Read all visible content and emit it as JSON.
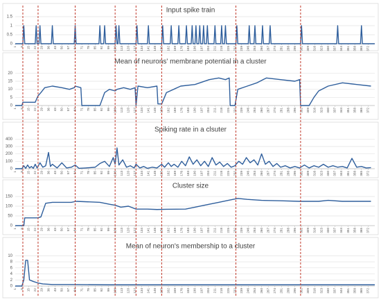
{
  "chart_data": [
    {
      "type": "line",
      "title": "Input spike train",
      "color": "#2e5e9c",
      "grid": true,
      "ylim": [
        0,
        1.5
      ],
      "yticks": [
        0,
        0.5,
        1,
        1.5
      ],
      "xlim": [
        1,
        379
      ],
      "xticks": [
        1,
        8,
        15,
        22,
        29,
        36,
        43,
        50,
        57,
        64,
        71,
        78,
        85,
        92,
        99,
        106,
        113,
        120,
        127,
        134,
        141,
        148,
        155,
        162,
        169,
        176,
        183,
        190,
        197,
        204,
        211,
        218,
        225,
        232,
        239,
        246,
        253,
        260,
        267,
        274,
        281,
        288,
        295,
        302,
        309,
        316,
        323,
        330,
        337,
        344,
        351,
        358,
        365,
        372
      ],
      "x": [
        1,
        9,
        10,
        11,
        22,
        23,
        24,
        26,
        27,
        28,
        39,
        40,
        41,
        63,
        64,
        65,
        89,
        90,
        91,
        94,
        95,
        96,
        106,
        107,
        108,
        109,
        110,
        111,
        128,
        129,
        130,
        140,
        141,
        142,
        155,
        156,
        157,
        164,
        165,
        166,
        172,
        173,
        174,
        180,
        181,
        182,
        186,
        187,
        188,
        190,
        191,
        192,
        194,
        195,
        196,
        198,
        199,
        200,
        202,
        203,
        204,
        210,
        211,
        212,
        217,
        218,
        219,
        221,
        222,
        223,
        233,
        234,
        235,
        246,
        247,
        248,
        252,
        253,
        254,
        260,
        261,
        262,
        268,
        269,
        270,
        301,
        302,
        303,
        339,
        340,
        341,
        364,
        365,
        366,
        379
      ],
      "values": [
        0,
        0,
        1,
        0,
        0,
        1,
        0,
        0,
        1,
        0,
        0,
        1,
        0,
        0,
        1,
        0,
        0,
        1,
        0,
        0,
        1,
        0,
        0,
        1,
        0,
        0,
        1,
        0,
        0,
        1,
        0,
        0,
        1,
        0,
        0,
        1,
        0,
        0,
        1,
        0,
        0,
        1,
        0,
        0,
        1,
        0,
        0,
        1,
        0,
        0,
        1,
        0,
        0,
        1,
        0,
        0,
        1,
        0,
        0,
        1,
        0,
        0,
        1,
        0,
        0,
        1,
        0,
        0,
        1,
        0,
        0,
        1,
        0,
        0,
        1,
        0,
        0,
        1,
        0,
        0,
        1,
        0,
        0,
        1,
        0,
        0,
        1,
        0,
        0,
        1,
        0,
        0,
        1,
        0,
        0
      ]
    },
    {
      "type": "line",
      "title": "Mean of neurons' membrane potential in a cluster",
      "color": "#2e5e9c",
      "grid": true,
      "ylim": [
        0,
        24
      ],
      "yticks": [
        0,
        5,
        10,
        15,
        20
      ],
      "xlim": [
        1,
        379
      ],
      "xticks": [
        1,
        8,
        15,
        22,
        29,
        36,
        43,
        50,
        57,
        64,
        71,
        78,
        85,
        92,
        99,
        106,
        113,
        120,
        127,
        134,
        141,
        148,
        155,
        162,
        169,
        176,
        183,
        190,
        197,
        204,
        211,
        218,
        225,
        232,
        239,
        246,
        253,
        260,
        267,
        274,
        281,
        288,
        295,
        302,
        309,
        316,
        323,
        330,
        337,
        344,
        351,
        358,
        365,
        372
      ],
      "x": [
        1,
        8,
        9,
        22,
        25,
        28,
        32,
        40,
        50,
        58,
        63,
        64,
        70,
        71,
        90,
        95,
        100,
        106,
        108,
        115,
        122,
        127,
        128,
        130,
        140,
        150,
        151,
        155,
        160,
        175,
        190,
        205,
        215,
        222,
        226,
        227,
        232,
        235,
        245,
        255,
        265,
        280,
        295,
        300,
        301,
        310,
        315,
        320,
        330,
        345,
        360,
        375
      ],
      "values": [
        0,
        0,
        2,
        2,
        6,
        8,
        11,
        12,
        11,
        10,
        11,
        12,
        11,
        0,
        0,
        8,
        10,
        9,
        10,
        11,
        10,
        11,
        0,
        12,
        11,
        12,
        1,
        1,
        8,
        12,
        13,
        16,
        17,
        16,
        17,
        0,
        0,
        10,
        12,
        14,
        17,
        16,
        15,
        16,
        0,
        0,
        5,
        9,
        12,
        14,
        13,
        12
      ]
    },
    {
      "type": "line",
      "title": "Spiking rate in a clsuter",
      "color": "#2e5e9c",
      "grid": true,
      "ylim": [
        0,
        450
      ],
      "yticks": [
        0,
        100,
        200,
        300,
        400
      ],
      "xlim": [
        1,
        379
      ],
      "xticks": [
        1,
        8,
        15,
        22,
        29,
        36,
        43,
        50,
        57,
        64,
        71,
        78,
        85,
        92,
        99,
        106,
        113,
        120,
        127,
        134,
        141,
        148,
        155,
        162,
        169,
        176,
        183,
        190,
        197,
        204,
        211,
        218,
        225,
        232,
        239,
        246,
        253,
        260,
        267,
        274,
        281,
        288,
        295,
        302,
        309,
        316,
        323,
        330,
        337,
        344,
        351,
        358,
        365,
        372
      ],
      "x": [
        1,
        8,
        10,
        12,
        14,
        16,
        18,
        20,
        22,
        24,
        27,
        30,
        33,
        36,
        38,
        40,
        45,
        50,
        55,
        60,
        64,
        68,
        75,
        85,
        90,
        95,
        100,
        104,
        106,
        108,
        110,
        114,
        118,
        122,
        126,
        128,
        132,
        136,
        140,
        145,
        150,
        155,
        158,
        162,
        165,
        168,
        172,
        176,
        180,
        184,
        188,
        192,
        196,
        200,
        204,
        208,
        212,
        216,
        220,
        224,
        228,
        232,
        236,
        240,
        244,
        248,
        252,
        256,
        260,
        264,
        268,
        272,
        276,
        280,
        285,
        290,
        295,
        300,
        305,
        310,
        315,
        320,
        325,
        330,
        335,
        340,
        345,
        350,
        355,
        360,
        365,
        370,
        375
      ],
      "values": [
        0,
        0,
        40,
        5,
        50,
        10,
        30,
        5,
        60,
        10,
        80,
        20,
        40,
        220,
        30,
        60,
        10,
        80,
        10,
        20,
        50,
        5,
        10,
        20,
        70,
        100,
        30,
        150,
        60,
        280,
        50,
        120,
        20,
        40,
        10,
        60,
        10,
        30,
        5,
        20,
        10,
        60,
        20,
        80,
        30,
        60,
        20,
        100,
        40,
        160,
        60,
        120,
        40,
        100,
        30,
        150,
        50,
        90,
        30,
        70,
        20,
        40,
        100,
        60,
        150,
        80,
        120,
        50,
        200,
        60,
        100,
        30,
        70,
        20,
        40,
        10,
        30,
        10,
        50,
        10,
        40,
        20,
        60,
        20,
        40,
        20,
        30,
        10,
        140,
        20,
        30,
        10,
        15
      ]
    },
    {
      "type": "line",
      "title": "Cluster size",
      "color": "#2e5e9c",
      "grid": true,
      "ylim": [
        0,
        175
      ],
      "yticks": [
        0,
        50,
        100,
        150
      ],
      "xlim": [
        1,
        379
      ],
      "xticks": [
        1,
        8,
        15,
        22,
        29,
        36,
        43,
        50,
        57,
        64,
        71,
        78,
        85,
        92,
        99,
        106,
        113,
        120,
        127,
        134,
        141,
        148,
        155,
        162,
        169,
        176,
        183,
        190,
        197,
        204,
        211,
        218,
        225,
        232,
        239,
        246,
        253,
        260,
        267,
        274,
        281,
        288,
        295,
        302,
        309,
        316,
        323,
        330,
        337,
        344,
        351,
        358,
        365,
        372
      ],
      "x": [
        1,
        10,
        11,
        25,
        28,
        33,
        40,
        60,
        65,
        90,
        100,
        106,
        112,
        120,
        128,
        140,
        150,
        160,
        180,
        190,
        200,
        215,
        225,
        235,
        245,
        260,
        280,
        300,
        320,
        330,
        345,
        375
      ],
      "values": [
        0,
        0,
        40,
        40,
        45,
        115,
        120,
        120,
        125,
        120,
        110,
        105,
        95,
        100,
        85,
        85,
        83,
        84,
        85,
        95,
        105,
        120,
        130,
        140,
        135,
        130,
        128,
        125,
        125,
        130,
        125,
        125
      ]
    },
    {
      "type": "line",
      "title": "Mean of neuron's membership to a cluster",
      "color": "#2e5e9c",
      "grid": true,
      "ylim": [
        0,
        11
      ],
      "yticks": [
        0,
        2,
        4,
        6,
        8,
        10
      ],
      "xlim": [
        1,
        379
      ],
      "xticks": [
        1,
        8,
        15,
        22,
        29,
        36,
        43,
        50,
        57,
        64,
        71,
        78,
        85,
        92,
        99,
        106,
        113,
        120,
        127,
        134,
        141,
        148,
        155,
        162,
        169,
        176,
        183,
        190,
        197,
        204,
        211,
        218,
        225,
        232,
        239,
        246,
        253,
        260,
        267,
        274,
        281,
        288,
        295,
        302,
        309,
        316,
        323,
        330,
        337,
        344,
        351,
        358,
        365,
        372
      ],
      "x": [
        1,
        8,
        10,
        12,
        14,
        16,
        20,
        25,
        30,
        40,
        60,
        100,
        200,
        300,
        379
      ],
      "values": [
        0,
        0,
        2,
        8.5,
        8.5,
        2,
        1.5,
        1,
        0.7,
        0.5,
        0.5,
        0.4,
        0.4,
        0.4,
        0.4
      ]
    }
  ],
  "vlines": {
    "x": [
      9,
      25,
      64,
      106,
      128,
      155,
      233,
      301
    ],
    "color": "#c0392b"
  }
}
